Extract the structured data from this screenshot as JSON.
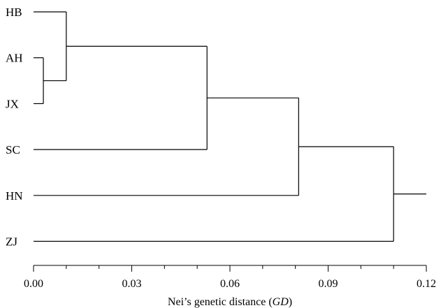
{
  "chart_data": {
    "type": "dendrogram",
    "leaves": [
      "HB",
      "AH",
      "JX",
      "SC",
      "HN",
      "ZJ"
    ],
    "merges": [
      {
        "children": [
          "AH",
          "JX"
        ],
        "distance": 0.003
      },
      {
        "children": [
          "HB",
          "AH+JX"
        ],
        "distance": 0.01
      },
      {
        "children": [
          "HB+AH+JX",
          "SC"
        ],
        "distance": 0.053
      },
      {
        "children": [
          "HB+AH+JX+SC",
          "HN"
        ],
        "distance": 0.081
      },
      {
        "children": [
          "HB+AH+JX+SC+HN",
          "ZJ"
        ],
        "distance": 0.11
      }
    ],
    "root_extent": 0.12,
    "xlim": [
      0,
      0.12
    ],
    "xticks_major": [
      0.0,
      0.03,
      0.06,
      0.09,
      0.12
    ],
    "xtick_labels": [
      "0.00",
      "0.03",
      "0.06",
      "0.09",
      "0.12"
    ],
    "xticks_minor_step": 0.01,
    "xlabel_prefix": "Nei’s genetic distance",
    "xlabel_italic": "GD",
    "line_color": "#000000"
  }
}
